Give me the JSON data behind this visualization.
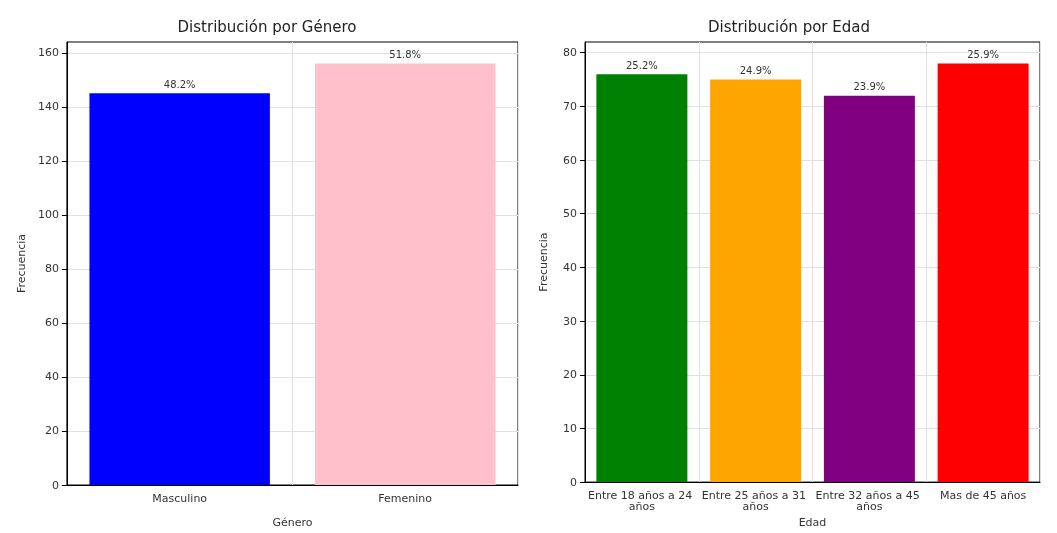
{
  "chart_data": [
    {
      "type": "bar",
      "title": "Distribución por Género",
      "xlabel": "Género",
      "ylabel": "Frecuencia",
      "categories": [
        "Masculino",
        "Femenino"
      ],
      "values": [
        145,
        156
      ],
      "colors": [
        "#0000ff",
        "#ffc0cb"
      ],
      "ylim": [
        0,
        164
      ],
      "yticks": [
        0,
        20,
        40,
        60,
        80,
        100,
        120,
        140,
        160
      ],
      "grid": true,
      "annotations": [
        {
          "text": "48.2%",
          "x": "Masculino",
          "y": 145
        },
        {
          "text": "51.8%",
          "x": "Femenino",
          "y": 156
        }
      ]
    },
    {
      "type": "bar",
      "title": "Distribución por Edad",
      "xlabel": "Edad",
      "ylabel": "Frecuencia",
      "categories": [
        "Entre 18 años a 24 años",
        "Entre 25 años a 31 años",
        "Entre 32 años a 45 años",
        "Mas de 45 años"
      ],
      "values": [
        76,
        75,
        72,
        78
      ],
      "colors": [
        "#008000",
        "#ffa500",
        "#800080",
        "#ff0000"
      ],
      "ylim": [
        0,
        82
      ],
      "yticks": [
        0,
        10,
        20,
        30,
        40,
        50,
        60,
        70,
        80
      ],
      "grid": true,
      "annotations": [
        {
          "text": "25.2%",
          "x": "Entre 18 años a 24 años",
          "y": 76
        },
        {
          "text": "24.9%",
          "x": "Entre 25 años a 31 años",
          "y": 75
        },
        {
          "text": "23.9%",
          "x": "Entre 32 años a 45 años",
          "y": 72
        },
        {
          "text": "25.9%",
          "x": "Mas de 45 años",
          "y": 78
        }
      ]
    }
  ]
}
